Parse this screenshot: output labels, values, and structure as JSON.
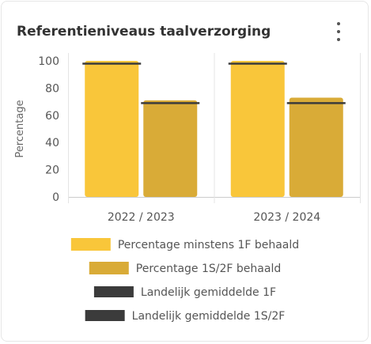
{
  "card": {
    "title": "Referentieniveaus taalverzorging",
    "menu_icon": "more-vertical-icon"
  },
  "chart_data": {
    "type": "bar",
    "categories": [
      "2022 / 2023",
      "2023 / 2024"
    ],
    "series": [
      {
        "name": "Percentage minstens 1F behaald",
        "values": [
          100,
          100
        ],
        "color": "#f9c63a"
      },
      {
        "name": "Percentage 1S/2F behaald",
        "values": [
          71,
          73
        ],
        "color": "#d9ab37"
      }
    ],
    "reference_lines": [
      {
        "name": "Landelijk gemiddelde 1F",
        "values": [
          98,
          98
        ],
        "color": "#3b3b3b"
      },
      {
        "name": "Landelijk gemiddelde 1S/2F",
        "values": [
          69,
          69
        ],
        "color": "#3b3b3b"
      }
    ],
    "ylabel": "Percentage",
    "xlabel": "",
    "ylim": [
      0,
      100
    ],
    "yticks": [
      "0",
      "20",
      "40",
      "60",
      "80",
      "100"
    ],
    "grid": "vertical separators",
    "legend_position": "bottom"
  }
}
